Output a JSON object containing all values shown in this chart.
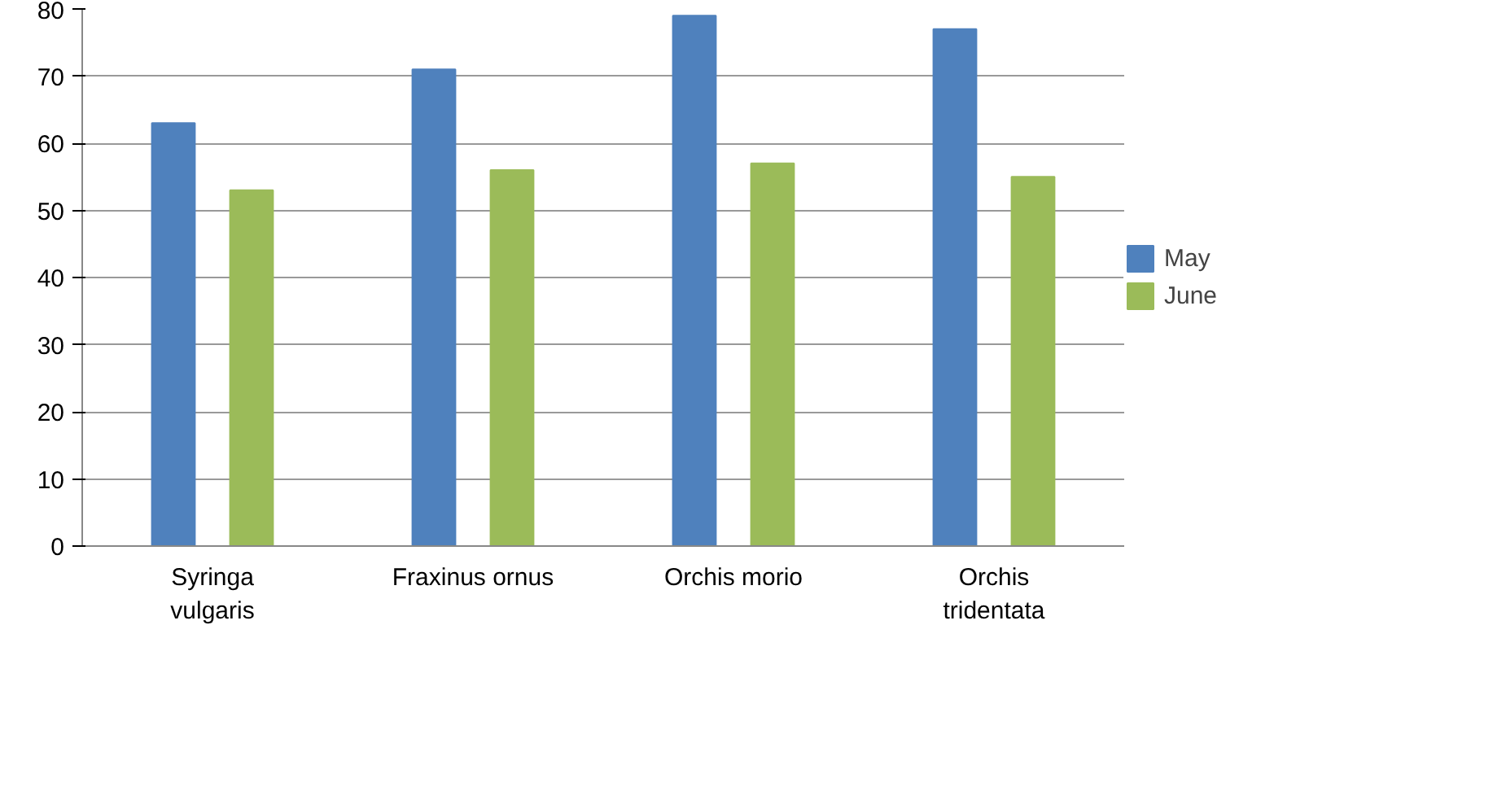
{
  "chart_data": {
    "type": "bar",
    "categories": [
      "Syringa vulgaris",
      "Fraxinus ornus",
      "Orchis morio",
      "Orchis tridentata"
    ],
    "series": [
      {
        "name": "May",
        "color": "#4f81bd",
        "values": [
          63,
          71,
          79,
          77
        ]
      },
      {
        "name": "June",
        "color": "#9bbb59",
        "values": [
          53,
          56,
          57,
          55
        ]
      }
    ],
    "ylim": [
      0,
      80
    ],
    "yticks": [
      0,
      10,
      20,
      30,
      40,
      50,
      60,
      70,
      80
    ],
    "grid": "y",
    "legend": "right"
  }
}
